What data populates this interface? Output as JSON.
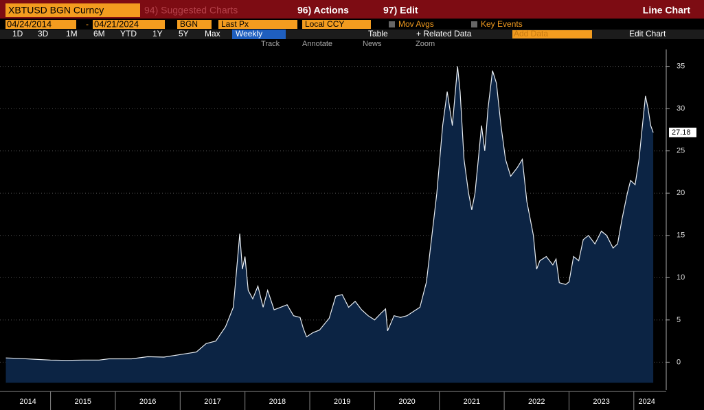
{
  "toolbar": {
    "security": "XBTUSD BGN Curncy",
    "suggested": "94) Suggested Charts",
    "actions": "96) Actions",
    "edit": "97) Edit",
    "chart_kind": "Line Chart",
    "start_date": "04/24/2014",
    "date_sep": "-",
    "end_date": "04/21/2024",
    "source": "BGN",
    "field": "Last Px",
    "currency": "Local CCY",
    "mov_avgs": "Mov Avgs",
    "key_events": "Key Events",
    "periods": [
      "1D",
      "3D",
      "1M",
      "6M",
      "YTD",
      "1Y",
      "5Y",
      "Max"
    ],
    "frequency": "Weekly",
    "table": "Table",
    "related": "+ Related Data",
    "add_data": "Add Data",
    "edit_chart": "Edit Chart",
    "tools": [
      "Track",
      "Annotate",
      "News",
      "Zoom"
    ]
  },
  "chart_data": {
    "type": "line",
    "color": "#e8edf2",
    "fill": "#0c2444",
    "x": [
      2014.31,
      2014.5,
      2014.75,
      2015.0,
      2015.25,
      2015.5,
      2015.75,
      2015.9,
      2016.25,
      2016.5,
      2016.75,
      2017.0,
      2017.25,
      2017.4,
      2017.55,
      2017.7,
      2017.82,
      2017.92,
      2017.96,
      2018.0,
      2018.05,
      2018.12,
      2018.2,
      2018.28,
      2018.35,
      2018.45,
      2018.55,
      2018.65,
      2018.75,
      2018.85,
      2018.9,
      2018.95,
      2019.05,
      2019.15,
      2019.3,
      2019.4,
      2019.5,
      2019.6,
      2019.7,
      2019.8,
      2019.9,
      2020.0,
      2020.1,
      2020.17,
      2020.2,
      2020.3,
      2020.4,
      2020.5,
      2020.6,
      2020.7,
      2020.8,
      2020.9,
      2020.96,
      2021.05,
      2021.12,
      2021.2,
      2021.28,
      2021.32,
      2021.38,
      2021.45,
      2021.5,
      2021.55,
      2021.6,
      2021.65,
      2021.7,
      2021.75,
      2021.82,
      2021.88,
      2021.95,
      2022.02,
      2022.1,
      2022.2,
      2022.28,
      2022.35,
      2022.45,
      2022.5,
      2022.55,
      2022.65,
      2022.75,
      2022.8,
      2022.85,
      2022.95,
      2023.0,
      2023.07,
      2023.15,
      2023.22,
      2023.3,
      2023.4,
      2023.5,
      2023.58,
      2023.68,
      2023.75,
      2023.82,
      2023.9,
      2023.95,
      2024.02,
      2024.08,
      2024.12,
      2024.18,
      2024.22,
      2024.26,
      2024.3
    ],
    "values": [
      0.5,
      0.45,
      0.35,
      0.25,
      0.22,
      0.25,
      0.25,
      0.4,
      0.4,
      0.65,
      0.6,
      0.9,
      1.2,
      2.2,
      2.5,
      4.2,
      6.5,
      15.2,
      11,
      12.5,
      8.5,
      7.5,
      9,
      6.5,
      8.5,
      6.2,
      6.5,
      6.8,
      5.5,
      5.3,
      4,
      3,
      3.5,
      3.8,
      5.2,
      7.8,
      8,
      6.5,
      7.2,
      6.2,
      5.5,
      5,
      5.8,
      6.3,
      3.7,
      5.5,
      5.3,
      5.5,
      6,
      6.5,
      9.5,
      16,
      20,
      28,
      32,
      28,
      35,
      32,
      24,
      20,
      18,
      20,
      24,
      28,
      25,
      30,
      34.5,
      33,
      28,
      24,
      22,
      23,
      24,
      19,
      15,
      11,
      12,
      12.5,
      11.5,
      12.2,
      9.4,
      9.2,
      9.5,
      12.5,
      12,
      14.5,
      15,
      14,
      15.5,
      15,
      13.5,
      14,
      17,
      20,
      21.5,
      21,
      24,
      27,
      31.5,
      30,
      28,
      27.18
    ],
    "xlim": [
      2014.22,
      2024.5
    ],
    "xticks": [
      {
        "value": 2014.65,
        "label": "2014"
      },
      {
        "value": 2015.5,
        "label": "2015"
      },
      {
        "value": 2016.5,
        "label": "2016"
      },
      {
        "value": 2017.5,
        "label": "2017"
      },
      {
        "value": 2018.5,
        "label": "2018"
      },
      {
        "value": 2019.5,
        "label": "2019"
      },
      {
        "value": 2020.5,
        "label": "2020"
      },
      {
        "value": 2021.5,
        "label": "2021"
      },
      {
        "value": 2022.5,
        "label": "2022"
      },
      {
        "value": 2023.5,
        "label": "2023"
      },
      {
        "value": 2024.2,
        "label": "2024"
      }
    ],
    "xseparators": [
      2015,
      2016,
      2017,
      2018,
      2019,
      2020,
      2021,
      2022,
      2023,
      2024
    ],
    "ylim": [
      -3.3,
      37
    ],
    "yticks": [
      0,
      5,
      10,
      15,
      20,
      25,
      30,
      35
    ],
    "grid": true
  }
}
